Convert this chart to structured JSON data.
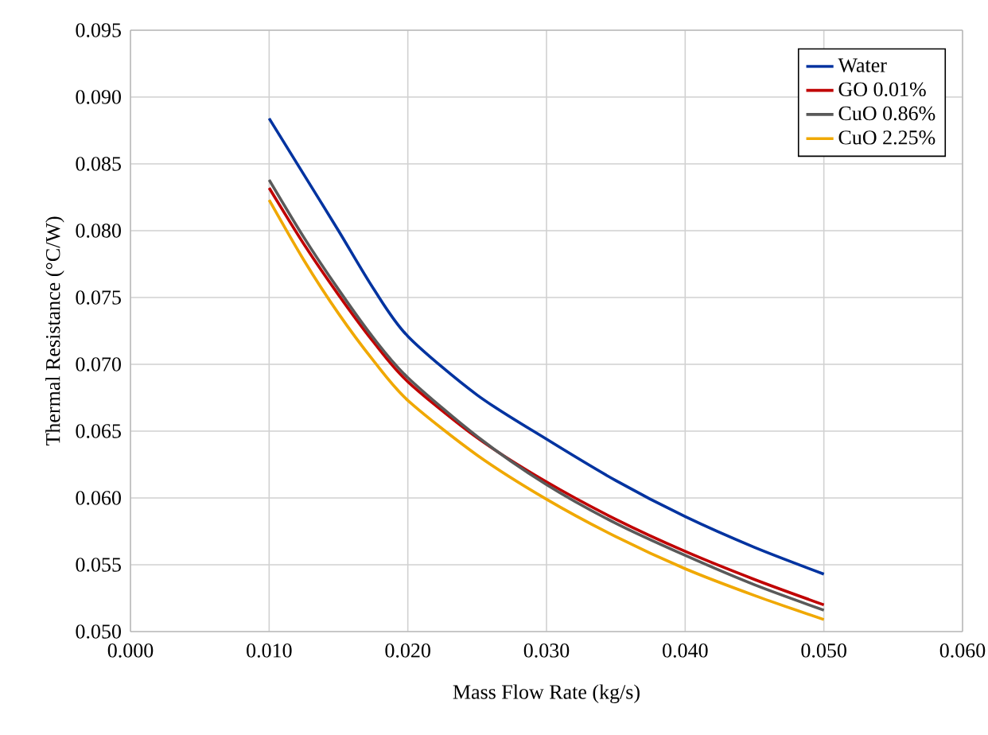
{
  "chart_data": {
    "type": "line",
    "xlabel": "Mass Flow Rate (kg/s)",
    "ylabel": "Thermal Resistance (°C/W)",
    "x": [
      0.01,
      0.0125,
      0.015,
      0.0175,
      0.02,
      0.025,
      0.03,
      0.035,
      0.04,
      0.045,
      0.05
    ],
    "series": [
      {
        "name": "Water",
        "color": "#0033a0",
        "values": [
          0.0884,
          0.0842,
          0.08,
          0.0757,
          0.0721,
          0.0677,
          0.0644,
          0.0613,
          0.0586,
          0.0563,
          0.0543
        ]
      },
      {
        "name": "GO 0.01%",
        "color": "#c00000",
        "values": [
          0.0832,
          0.079,
          0.0752,
          0.0717,
          0.0687,
          0.0645,
          0.0612,
          0.0584,
          0.056,
          0.0539,
          0.052
        ]
      },
      {
        "name": "CuO 0.86%",
        "color": "#595959",
        "values": [
          0.0838,
          0.0795,
          0.0756,
          0.072,
          0.069,
          0.0646,
          0.061,
          0.0581,
          0.0557,
          0.0535,
          0.0516
        ]
      },
      {
        "name": "CuO 2.25%",
        "color": "#f0a800",
        "values": [
          0.0823,
          0.0778,
          0.0738,
          0.0703,
          0.0673,
          0.0632,
          0.0599,
          0.0571,
          0.0547,
          0.0527,
          0.0509
        ]
      }
    ],
    "xlim": [
      0.0,
      0.06
    ],
    "xticks": [
      {
        "value": 0.0,
        "label": "0.000"
      },
      {
        "value": 0.01,
        "label": "0.010"
      },
      {
        "value": 0.02,
        "label": "0.020"
      },
      {
        "value": 0.03,
        "label": "0.030"
      },
      {
        "value": 0.04,
        "label": "0.040"
      },
      {
        "value": 0.05,
        "label": "0.050"
      },
      {
        "value": 0.06,
        "label": "0.060"
      }
    ],
    "ylim": [
      0.05,
      0.095
    ],
    "yticks": [
      {
        "value": 0.05,
        "label": "0.050"
      },
      {
        "value": 0.055,
        "label": "0.055"
      },
      {
        "value": 0.06,
        "label": "0.060"
      },
      {
        "value": 0.065,
        "label": "0.065"
      },
      {
        "value": 0.07,
        "label": "0.070"
      },
      {
        "value": 0.075,
        "label": "0.075"
      },
      {
        "value": 0.08,
        "label": "0.080"
      },
      {
        "value": 0.085,
        "label": "0.085"
      },
      {
        "value": 0.09,
        "label": "0.090"
      },
      {
        "value": 0.095,
        "label": "0.095"
      }
    ],
    "grid": true,
    "legend": "top right",
    "marker": "none",
    "line_style": "solid"
  }
}
